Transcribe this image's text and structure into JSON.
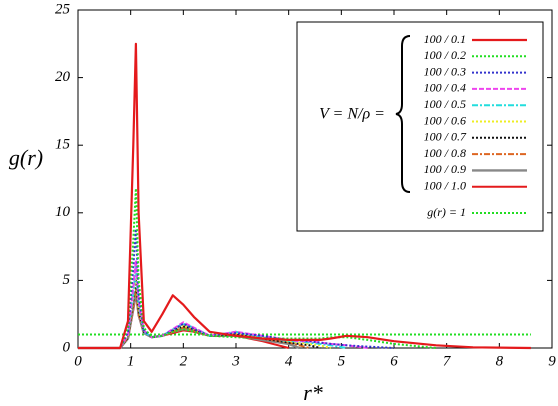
{
  "chart_data": {
    "type": "line",
    "xlabel": "r*",
    "ylabel": "g(r)",
    "legend_title": "V = N/ρ =",
    "xlim": [
      0,
      9
    ],
    "ylim": [
      0,
      25
    ],
    "xticks": [
      0,
      1,
      2,
      3,
      4,
      5,
      6,
      7,
      8,
      9
    ],
    "yticks": [
      0,
      5,
      10,
      15,
      20,
      25
    ],
    "legend": "upper right",
    "x": [
      0,
      0.8,
      0.95,
      1.05,
      1.1,
      1.15,
      1.25,
      1.4,
      1.6,
      1.8,
      2.0,
      2.2,
      2.5,
      3.0,
      3.5,
      4.0,
      4.2,
      4.4,
      4.6,
      4.8,
      5.1,
      5.5,
      6.0,
      6.8,
      7.5,
      8.6
    ],
    "series": [
      {
        "name": "100 / 0.1",
        "color": "#e41a1c",
        "dash": "",
        "width": 2.2,
        "values": [
          0,
          0,
          2,
          15,
          22.5,
          10,
          2,
          1.2,
          2.5,
          3.9,
          3.2,
          2.3,
          1.2,
          0.9,
          0.7,
          0.6,
          0.6,
          0.6,
          0.6,
          0.7,
          0.9,
          0.8,
          0.5,
          0.2,
          0.05,
          0
        ]
      },
      {
        "name": "100 / 0.2",
        "color": "#22dd22",
        "dash": "2,2",
        "width": 2,
        "values": [
          0,
          0,
          1.5,
          8,
          11.8,
          5,
          1.5,
          0.8,
          0.9,
          1.2,
          1.4,
          1.2,
          0.9,
          0.8,
          0.7,
          0.7,
          0.7,
          0.7,
          0.7,
          0.8,
          0.8,
          0.6,
          0.3,
          0,
          null,
          null
        ]
      },
      {
        "name": "100 / 0.3",
        "color": "#3333cc",
        "dash": "2,2",
        "width": 2,
        "values": [
          0,
          0,
          1.2,
          6,
          8.8,
          4,
          1.3,
          0.8,
          0.9,
          1.3,
          1.8,
          1.4,
          0.9,
          1.1,
          0.9,
          0.6,
          0.6,
          0.5,
          0.4,
          0.3,
          0.2,
          0.1,
          0,
          null,
          null,
          null
        ]
      },
      {
        "name": "100 / 0.4",
        "color": "#ee44ee",
        "dash": "5,2",
        "width": 2,
        "values": [
          0,
          0,
          1,
          4.5,
          6.5,
          3.5,
          1.3,
          0.8,
          0.9,
          1.4,
          1.9,
          1.5,
          0.9,
          1.2,
          0.9,
          0.6,
          0.5,
          0.5,
          0.4,
          0.3,
          0.2,
          0,
          null,
          null,
          null,
          null
        ]
      },
      {
        "name": "100 / 0.5",
        "color": "#22dddd",
        "dash": "6,2,2,2",
        "width": 2,
        "values": [
          0,
          0,
          1,
          4,
          6,
          3.2,
          1.2,
          0.8,
          0.9,
          1.4,
          1.8,
          1.5,
          0.9,
          1.2,
          0.8,
          0.5,
          0.5,
          0.4,
          0.3,
          0.2,
          0,
          null,
          null,
          null,
          null,
          null
        ]
      },
      {
        "name": "100 / 0.6",
        "color": "#eeee22",
        "dash": "2,2",
        "width": 2,
        "values": [
          0,
          0,
          0.9,
          3.8,
          5.5,
          3,
          1.2,
          0.8,
          0.9,
          1.3,
          1.7,
          1.4,
          0.9,
          1.1,
          0.8,
          0.5,
          0.4,
          0.3,
          0.2,
          0,
          null,
          null,
          null,
          null,
          null,
          null
        ]
      },
      {
        "name": "100 / 0.7",
        "color": "#111111",
        "dash": "2,2",
        "width": 2,
        "values": [
          0,
          0,
          0.8,
          3.5,
          5,
          2.8,
          1.2,
          0.8,
          0.9,
          1.3,
          1.6,
          1.4,
          0.9,
          1.0,
          0.7,
          0.4,
          0.3,
          0.2,
          0,
          null,
          null,
          null,
          null,
          null,
          null,
          null
        ]
      },
      {
        "name": "100 / 0.8",
        "color": "#dd6622",
        "dash": "6,2,2,2",
        "width": 2,
        "values": [
          0,
          0,
          0.8,
          3.2,
          4.5,
          2.6,
          1.2,
          0.8,
          0.9,
          1.2,
          1.5,
          1.3,
          0.9,
          1.0,
          0.7,
          0.4,
          0.2,
          0,
          null,
          null,
          null,
          null,
          null,
          null,
          null,
          null
        ]
      },
      {
        "name": "100 / 0.9",
        "color": "#888888",
        "dash": "",
        "width": 2.4,
        "values": [
          0,
          0,
          0.7,
          3,
          4.2,
          2.5,
          1.1,
          0.8,
          0.9,
          1.2,
          1.4,
          1.3,
          0.9,
          0.9,
          0.6,
          0.3,
          0,
          null,
          null,
          null,
          null,
          null,
          null,
          null,
          null,
          null
        ]
      },
      {
        "name": "100 / 1.0",
        "color": "#e41a1c",
        "dash": "",
        "width": 2,
        "values": [
          0,
          0,
          0.7,
          2.8,
          4,
          2.4,
          1.1,
          0.8,
          0.9,
          1.1,
          1.3,
          1.2,
          0.9,
          0.9,
          0.5,
          0,
          null,
          null,
          null,
          null,
          null,
          null,
          null,
          null,
          null,
          null
        ]
      },
      {
        "name": "g(r) = 1",
        "color": "#22dd22",
        "dash": "2,2",
        "width": 2,
        "values": [
          1,
          1,
          1,
          1,
          1,
          1,
          1,
          1,
          1,
          1,
          1,
          1,
          1,
          1,
          1,
          1,
          1,
          1,
          1,
          1,
          1,
          1,
          1,
          1,
          1,
          1
        ]
      }
    ]
  }
}
